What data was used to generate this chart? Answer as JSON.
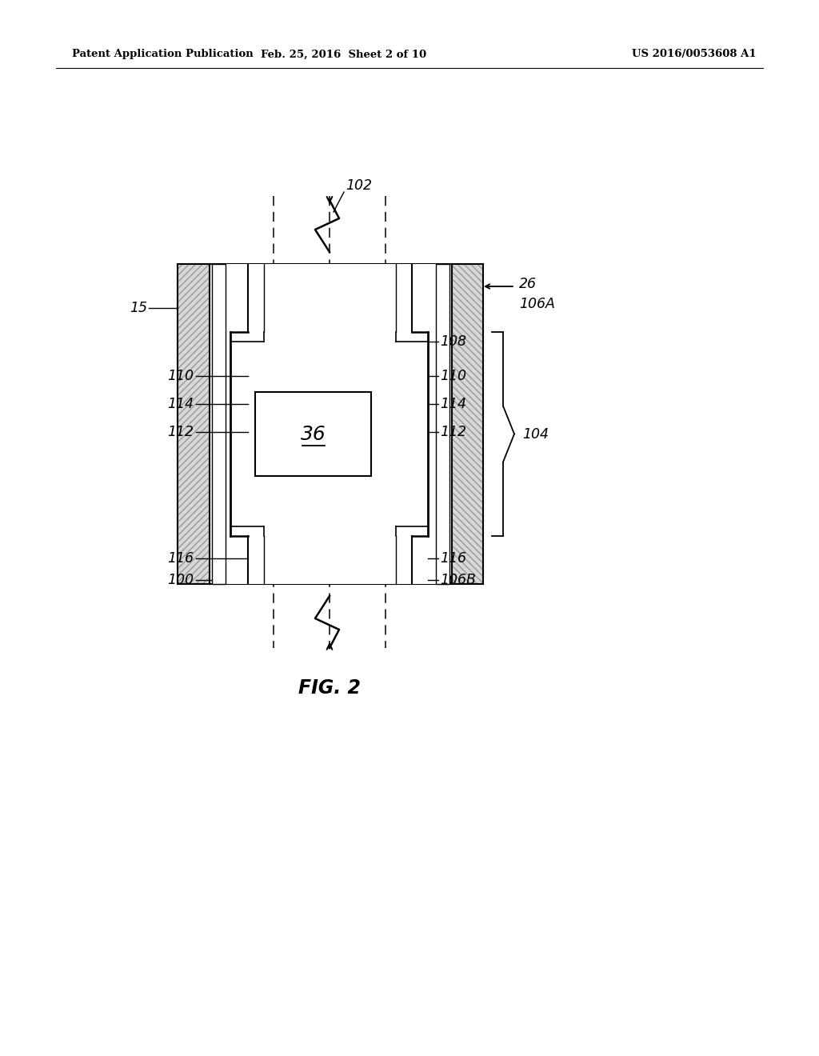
{
  "header_left": "Patent Application Publication",
  "header_mid": "Feb. 25, 2016  Sheet 2 of 10",
  "header_right": "US 2016/0053608 A1",
  "figure_label": "FIG. 2",
  "bg_color": "#ffffff",
  "line_color": "#000000"
}
